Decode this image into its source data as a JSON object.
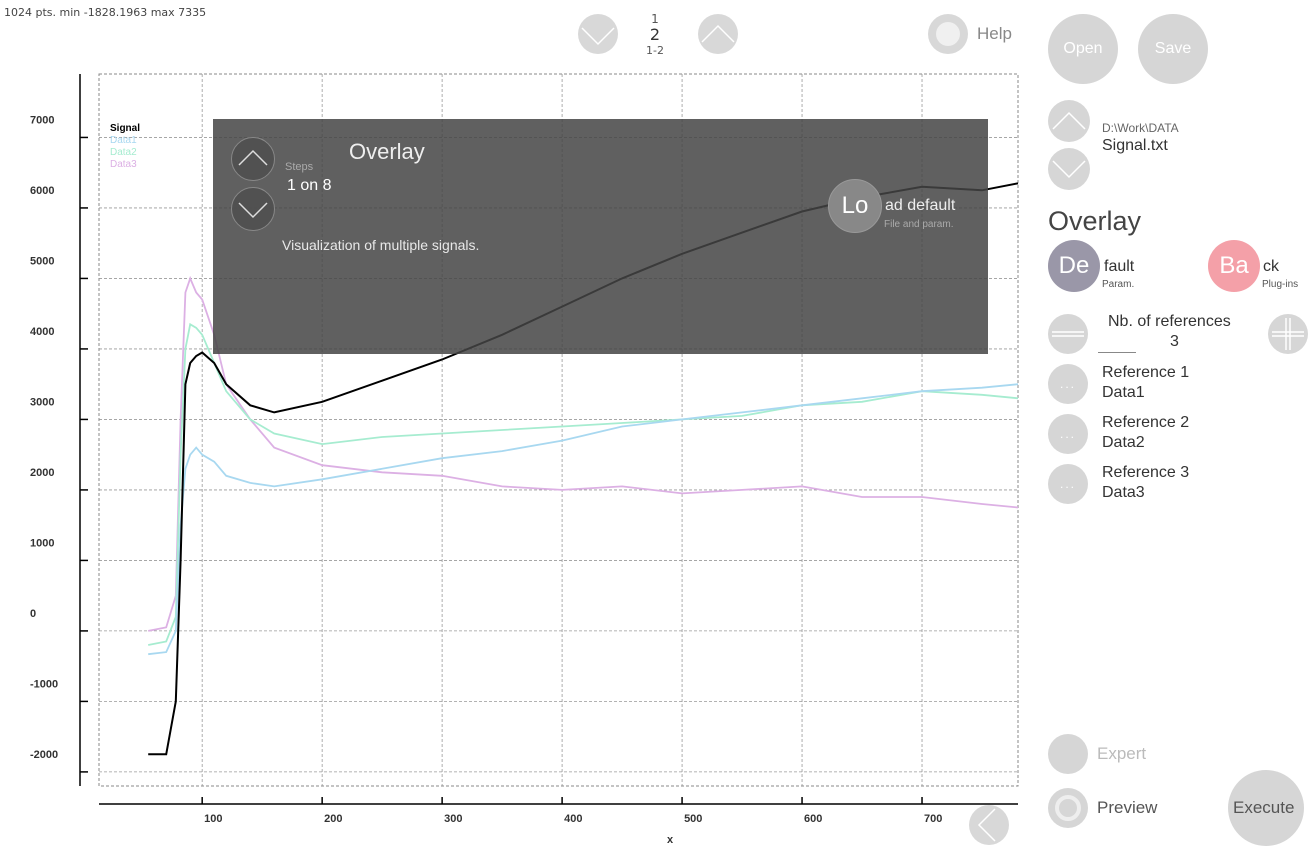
{
  "status_text": "1024 pts. min -1828.1963 max 7335",
  "pager": {
    "top": "1",
    "current": "2",
    "range": "1-2"
  },
  "help_label": "Help",
  "chart_data": {
    "type": "line",
    "xlabel": "x",
    "ylabel": "",
    "xlim": [
      14,
      780
    ],
    "ylim": [
      -2200,
      7900
    ],
    "x_ticks": [
      100,
      200,
      300,
      400,
      500,
      600,
      700
    ],
    "y_ticks": [
      -2000,
      -1000,
      0,
      1000,
      2000,
      3000,
      4000,
      5000,
      6000,
      7000
    ],
    "grid": true,
    "legend_position": "top-left",
    "series": [
      {
        "name": "Signal",
        "color": "#000000",
        "x": [
          55,
          70,
          78,
          82,
          86,
          90,
          95,
          100,
          110,
          120,
          140,
          160,
          200,
          250,
          300,
          350,
          400,
          450,
          500,
          550,
          600,
          650,
          700,
          750,
          780
        ],
        "values": [
          -1750,
          -1750,
          -1000,
          1000,
          3500,
          3800,
          3900,
          3950,
          3800,
          3500,
          3200,
          3100,
          3250,
          3550,
          3850,
          4200,
          4600,
          5000,
          5350,
          5650,
          5950,
          6150,
          6300,
          6250,
          6350
        ]
      },
      {
        "name": "Data1",
        "color": "#a8d8f0",
        "x": [
          55,
          70,
          78,
          82,
          86,
          90,
          95,
          100,
          110,
          120,
          140,
          160,
          200,
          250,
          300,
          350,
          400,
          450,
          500,
          550,
          600,
          650,
          700,
          750,
          780
        ],
        "values": [
          -330,
          -300,
          0,
          1500,
          2300,
          2500,
          2600,
          2500,
          2400,
          2200,
          2100,
          2050,
          2150,
          2300,
          2450,
          2550,
          2700,
          2900,
          3000,
          3100,
          3200,
          3300,
          3400,
          3450,
          3500
        ]
      },
      {
        "name": "Data2",
        "color": "#a6ecd0",
        "x": [
          55,
          70,
          78,
          82,
          86,
          90,
          95,
          100,
          110,
          120,
          140,
          160,
          200,
          250,
          300,
          350,
          400,
          450,
          500,
          550,
          600,
          650,
          700,
          750,
          780
        ],
        "values": [
          -200,
          -150,
          200,
          2500,
          4000,
          4350,
          4300,
          4200,
          3800,
          3400,
          3000,
          2800,
          2650,
          2750,
          2800,
          2850,
          2900,
          2950,
          3000,
          3050,
          3200,
          3250,
          3400,
          3350,
          3300
        ]
      },
      {
        "name": "Data3",
        "color": "#dcb0e4",
        "x": [
          55,
          70,
          78,
          82,
          86,
          90,
          95,
          100,
          110,
          120,
          140,
          160,
          200,
          250,
          300,
          350,
          400,
          450,
          500,
          550,
          600,
          650,
          700,
          750,
          780
        ],
        "values": [
          0,
          50,
          500,
          3000,
          4800,
          5000,
          4800,
          4700,
          4200,
          3500,
          3000,
          2600,
          2350,
          2250,
          2200,
          2050,
          2000,
          2050,
          1950,
          2000,
          2050,
          1900,
          1900,
          1800,
          1750
        ]
      }
    ]
  },
  "popup": {
    "title": "Overlay",
    "steps_label": "Steps",
    "steps_value": "1 on 8",
    "description": "Visualization of multiple signals.",
    "load_icon_text": "Lo",
    "load_label": "ad default",
    "load_sub": "File and param."
  },
  "panel": {
    "open_label": "Open",
    "save_label": "Save",
    "path": "D:\\Work\\DATA",
    "filename": "Signal.txt",
    "module_title": "Overlay",
    "default_icon_text": "De",
    "default_label": "fault",
    "default_sub": "Param.",
    "back_icon_text": "Ba",
    "back_label": "ck",
    "back_sub": "Plug-ins",
    "nb_refs_label": "Nb. of references",
    "nb_refs_value": "3",
    "references": [
      {
        "label": "Reference 1",
        "value": "Data1"
      },
      {
        "label": "Reference 2",
        "value": "Data2"
      },
      {
        "label": "Reference 3",
        "value": "Data3"
      }
    ],
    "expert_label": "Expert",
    "preview_label": "Preview",
    "execute_label": "Execute"
  },
  "colors": {
    "back_button": "#f4a0a8",
    "default_button": "#9a97a8",
    "overlay_bg": "#444444"
  }
}
